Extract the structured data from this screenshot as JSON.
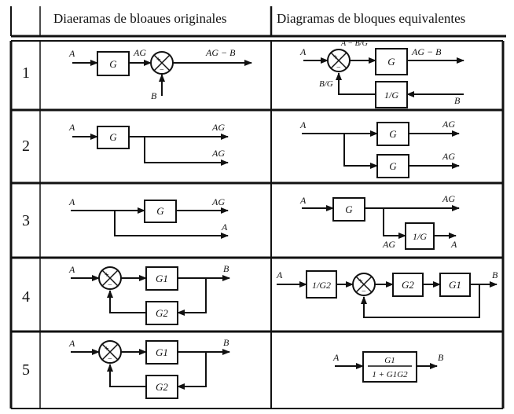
{
  "header": {
    "col_original": "Diaeramas de bloaues originales",
    "col_equivalent": "Diagramas de bloques equivalentes"
  },
  "rows": [
    {
      "number": "1",
      "original": {
        "input": "A",
        "block": "G",
        "mid": "AG",
        "output": "AG − B",
        "side_input": "B",
        "sum_signs": [
          "+",
          "−"
        ]
      },
      "equivalent": {
        "input": "A",
        "sum_out_label": "A − B/G",
        "block_main": "G",
        "output": "AG − B",
        "feedback_block": "1/G",
        "feedback_input": "B",
        "feedback_label": "B/G",
        "sum_signs": [
          "+",
          "−"
        ]
      }
    },
    {
      "number": "2",
      "original": {
        "input": "A",
        "block": "G",
        "output_1": "AG",
        "output_2": "AG"
      },
      "equivalent": {
        "input": "A",
        "block_1": "G",
        "block_2": "G",
        "output_1": "AG",
        "output_2": "AG"
      }
    },
    {
      "number": "3",
      "original": {
        "input": "A",
        "block": "G",
        "output_1": "AG",
        "output_2": "A"
      },
      "equivalent": {
        "input": "A",
        "block": "G",
        "output_1": "AG",
        "branch_label": "AG",
        "block_inverse": "1/G",
        "output_2": "A"
      }
    },
    {
      "number": "4",
      "original": {
        "input": "A",
        "forward_block": "G1",
        "feedback_block": "G2",
        "output": "B",
        "sum_signs": [
          "+",
          "−"
        ]
      },
      "equivalent": {
        "input": "A",
        "pre_block": "1/G2",
        "block_1": "G2",
        "block_2": "G1",
        "output": "B",
        "sum_signs": [
          "+",
          "−"
        ]
      }
    },
    {
      "number": "5",
      "original": {
        "input": "A",
        "forward_block": "G1",
        "feedback_block": "G2",
        "output": "B",
        "sum_signs": [
          "+",
          "−"
        ]
      },
      "equivalent": {
        "input": "A",
        "tf_numerator": "G1",
        "tf_denominator": "1 + G1G2",
        "output": "B"
      }
    }
  ]
}
